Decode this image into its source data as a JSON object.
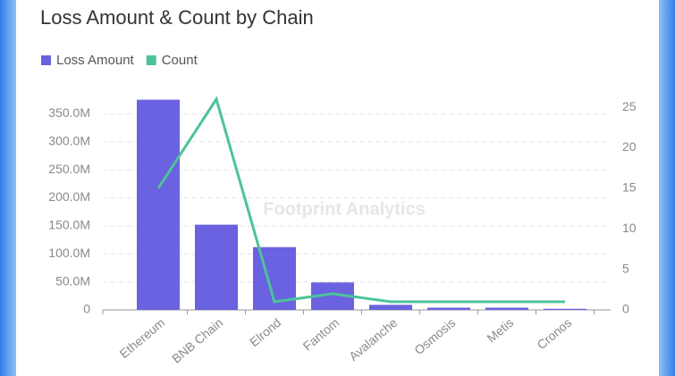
{
  "chart_data": {
    "type": "bar-line",
    "title": "Loss Amount & Count by Chain",
    "watermark": "Footprint Analytics",
    "categories": [
      "Ethereum",
      "BNB Chain",
      "Elrond",
      "Fantom",
      "Avalanche",
      "Osmosis",
      "Metis",
      "Cronos"
    ],
    "series": [
      {
        "name": "Loss Amount",
        "color": "#6a62e0",
        "kind": "bar",
        "values": [
          375000000,
          152000000,
          112000000,
          49000000,
          9000000,
          4000000,
          4000000,
          2000000
        ]
      },
      {
        "name": "Count",
        "color": "#4cc39a",
        "kind": "line",
        "axis": "y2",
        "values": [
          15,
          26,
          1,
          2,
          1,
          1,
          1,
          1
        ]
      }
    ],
    "ylim": [
      0,
      376000000
    ],
    "yticks": [
      0,
      {
        "value": 50000000,
        "label": "50.0M"
      },
      {
        "value": 100000000,
        "label": "100.0M"
      },
      {
        "value": 150000000,
        "label": "150.0M"
      },
      {
        "value": 200000000,
        "label": "200.0M"
      },
      {
        "value": 250000000,
        "label": "250.0M"
      },
      {
        "value": 300000000,
        "label": "300.0M"
      },
      {
        "value": 350000000,
        "label": "350.0M"
      }
    ],
    "y2lim": [
      0,
      26
    ],
    "y2ticks": [
      0,
      5,
      10,
      15,
      20,
      25
    ],
    "grid": true
  }
}
